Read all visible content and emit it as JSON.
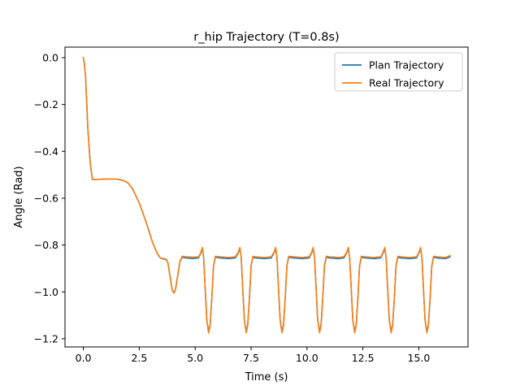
{
  "chart_data": {
    "type": "line",
    "title": "r_hip Trajectory (T=0.8s)",
    "xlabel": "Time (s)",
    "ylabel": "Angle (Rad)",
    "xlim": [
      -0.82,
      17.2
    ],
    "ylim": [
      -1.235,
      0.045
    ],
    "xticks": [
      0.0,
      2.5,
      5.0,
      7.5,
      10.0,
      12.5,
      15.0
    ],
    "xtick_labels": [
      "0.0",
      "2.5",
      "5.0",
      "7.5",
      "10.0",
      "12.5",
      "15.0"
    ],
    "yticks": [
      0.0,
      -0.2,
      -0.4,
      -0.6,
      -0.8,
      -1.0,
      -1.2
    ],
    "ytick_labels": [
      "0.0",
      "−0.2",
      "−0.4",
      "−0.6",
      "−0.8",
      "−1.0",
      "−1.2"
    ],
    "grid": false,
    "legend_position": "top-right",
    "series": [
      {
        "name": "Plan Trajectory",
        "color": "#1f77b4",
        "points": [
          [
            0.0,
            0.0
          ],
          [
            0.05,
            -0.03
          ],
          [
            0.1,
            -0.08
          ],
          [
            0.2,
            -0.3
          ],
          [
            0.3,
            -0.44
          ],
          [
            0.4,
            -0.52
          ],
          [
            0.6,
            -0.52
          ],
          [
            1.0,
            -0.518
          ],
          [
            1.5,
            -0.518
          ],
          [
            1.8,
            -0.525
          ],
          [
            2.0,
            -0.535
          ],
          [
            2.2,
            -0.56
          ],
          [
            2.5,
            -0.62
          ],
          [
            2.8,
            -0.7
          ],
          [
            3.1,
            -0.79
          ],
          [
            3.3,
            -0.835
          ],
          [
            3.45,
            -0.856
          ],
          [
            3.6,
            -0.86
          ],
          [
            3.7,
            -0.862
          ],
          [
            3.78,
            -0.875
          ],
          [
            3.88,
            -0.935
          ],
          [
            3.98,
            -0.995
          ],
          [
            4.05,
            -1.005
          ],
          [
            4.12,
            -0.99
          ],
          [
            4.22,
            -0.93
          ],
          [
            4.32,
            -0.87
          ],
          [
            4.42,
            -0.852
          ],
          [
            4.6,
            -0.855
          ],
          [
            4.9,
            -0.858
          ],
          [
            5.15,
            -0.855
          ],
          [
            5.25,
            -0.835
          ],
          [
            5.32,
            -0.815
          ],
          [
            5.38,
            -0.855
          ],
          [
            5.45,
            -0.99
          ],
          [
            5.52,
            -1.12
          ],
          [
            5.6,
            -1.17
          ],
          [
            5.67,
            -1.14
          ],
          [
            5.75,
            -1.02
          ],
          [
            5.82,
            -0.89
          ],
          [
            5.9,
            -0.852
          ],
          [
            6.1,
            -0.855
          ],
          [
            6.5,
            -0.858
          ],
          [
            6.8,
            -0.855
          ],
          [
            6.92,
            -0.835
          ],
          [
            7.0,
            -0.815
          ],
          [
            7.06,
            -0.855
          ],
          [
            7.13,
            -0.99
          ],
          [
            7.2,
            -1.12
          ],
          [
            7.28,
            -1.17
          ],
          [
            7.35,
            -1.14
          ],
          [
            7.43,
            -1.02
          ],
          [
            7.5,
            -0.89
          ],
          [
            7.58,
            -0.852
          ],
          [
            7.7,
            -0.855
          ],
          [
            8.1,
            -0.858
          ],
          [
            8.4,
            -0.855
          ],
          [
            8.52,
            -0.835
          ],
          [
            8.6,
            -0.815
          ],
          [
            8.66,
            -0.855
          ],
          [
            8.73,
            -0.99
          ],
          [
            8.8,
            -1.12
          ],
          [
            8.88,
            -1.17
          ],
          [
            8.95,
            -1.14
          ],
          [
            9.03,
            -1.02
          ],
          [
            9.1,
            -0.89
          ],
          [
            9.18,
            -0.852
          ],
          [
            9.4,
            -0.855
          ],
          [
            9.8,
            -0.858
          ],
          [
            10.1,
            -0.855
          ],
          [
            10.2,
            -0.835
          ],
          [
            10.28,
            -0.815
          ],
          [
            10.34,
            -0.855
          ],
          [
            10.41,
            -0.99
          ],
          [
            10.48,
            -1.12
          ],
          [
            10.56,
            -1.17
          ],
          [
            10.63,
            -1.14
          ],
          [
            10.71,
            -1.02
          ],
          [
            10.78,
            -0.89
          ],
          [
            10.86,
            -0.852
          ],
          [
            11.0,
            -0.855
          ],
          [
            11.4,
            -0.858
          ],
          [
            11.65,
            -0.855
          ],
          [
            11.77,
            -0.835
          ],
          [
            11.85,
            -0.815
          ],
          [
            11.91,
            -0.855
          ],
          [
            11.98,
            -0.99
          ],
          [
            12.05,
            -1.12
          ],
          [
            12.13,
            -1.17
          ],
          [
            12.2,
            -1.14
          ],
          [
            12.28,
            -1.02
          ],
          [
            12.35,
            -0.89
          ],
          [
            12.43,
            -0.852
          ],
          [
            12.6,
            -0.855
          ],
          [
            13.0,
            -0.858
          ],
          [
            13.3,
            -0.855
          ],
          [
            13.4,
            -0.835
          ],
          [
            13.48,
            -0.815
          ],
          [
            13.54,
            -0.855
          ],
          [
            13.61,
            -0.99
          ],
          [
            13.68,
            -1.12
          ],
          [
            13.76,
            -1.17
          ],
          [
            13.83,
            -1.14
          ],
          [
            13.91,
            -1.02
          ],
          [
            13.98,
            -0.89
          ],
          [
            14.06,
            -0.852
          ],
          [
            14.2,
            -0.855
          ],
          [
            14.6,
            -0.858
          ],
          [
            14.9,
            -0.855
          ],
          [
            15.0,
            -0.835
          ],
          [
            15.08,
            -0.815
          ],
          [
            15.14,
            -0.855
          ],
          [
            15.21,
            -0.99
          ],
          [
            15.28,
            -1.12
          ],
          [
            15.36,
            -1.17
          ],
          [
            15.43,
            -1.14
          ],
          [
            15.51,
            -1.02
          ],
          [
            15.58,
            -0.89
          ],
          [
            15.66,
            -0.852
          ],
          [
            15.8,
            -0.855
          ],
          [
            16.2,
            -0.858
          ],
          [
            16.4,
            -0.85
          ]
        ]
      },
      {
        "name": "Real Trajectory",
        "color": "#ff7f0e",
        "points": [
          [
            0.0,
            0.0
          ],
          [
            0.05,
            -0.03
          ],
          [
            0.1,
            -0.08
          ],
          [
            0.2,
            -0.3
          ],
          [
            0.3,
            -0.44
          ],
          [
            0.4,
            -0.52
          ],
          [
            0.6,
            -0.52
          ],
          [
            1.0,
            -0.518
          ],
          [
            1.5,
            -0.518
          ],
          [
            1.8,
            -0.525
          ],
          [
            2.0,
            -0.535
          ],
          [
            2.2,
            -0.56
          ],
          [
            2.5,
            -0.62
          ],
          [
            2.8,
            -0.7
          ],
          [
            3.1,
            -0.79
          ],
          [
            3.3,
            -0.835
          ],
          [
            3.45,
            -0.856
          ],
          [
            3.6,
            -0.858
          ],
          [
            3.7,
            -0.86
          ],
          [
            3.78,
            -0.875
          ],
          [
            3.88,
            -0.935
          ],
          [
            3.98,
            -0.995
          ],
          [
            4.05,
            -1.005
          ],
          [
            4.12,
            -0.99
          ],
          [
            4.22,
            -0.93
          ],
          [
            4.32,
            -0.87
          ],
          [
            4.42,
            -0.848
          ],
          [
            4.6,
            -0.85
          ],
          [
            4.9,
            -0.852
          ],
          [
            5.15,
            -0.85
          ],
          [
            5.25,
            -0.832
          ],
          [
            5.32,
            -0.81
          ],
          [
            5.38,
            -0.855
          ],
          [
            5.45,
            -0.99
          ],
          [
            5.52,
            -1.12
          ],
          [
            5.6,
            -1.175
          ],
          [
            5.67,
            -1.145
          ],
          [
            5.75,
            -1.02
          ],
          [
            5.82,
            -0.89
          ],
          [
            5.9,
            -0.848
          ],
          [
            6.1,
            -0.85
          ],
          [
            6.5,
            -0.853
          ],
          [
            6.8,
            -0.85
          ],
          [
            6.92,
            -0.832
          ],
          [
            7.0,
            -0.81
          ],
          [
            7.06,
            -0.855
          ],
          [
            7.13,
            -0.99
          ],
          [
            7.2,
            -1.12
          ],
          [
            7.28,
            -1.175
          ],
          [
            7.35,
            -1.145
          ],
          [
            7.43,
            -1.02
          ],
          [
            7.5,
            -0.89
          ],
          [
            7.58,
            -0.848
          ],
          [
            7.7,
            -0.85
          ],
          [
            8.1,
            -0.853
          ],
          [
            8.4,
            -0.85
          ],
          [
            8.52,
            -0.832
          ],
          [
            8.6,
            -0.81
          ],
          [
            8.66,
            -0.855
          ],
          [
            8.73,
            -0.99
          ],
          [
            8.8,
            -1.12
          ],
          [
            8.88,
            -1.175
          ],
          [
            8.95,
            -1.145
          ],
          [
            9.03,
            -1.02
          ],
          [
            9.1,
            -0.89
          ],
          [
            9.18,
            -0.848
          ],
          [
            9.4,
            -0.85
          ],
          [
            9.8,
            -0.853
          ],
          [
            10.1,
            -0.85
          ],
          [
            10.2,
            -0.832
          ],
          [
            10.28,
            -0.81
          ],
          [
            10.34,
            -0.855
          ],
          [
            10.41,
            -0.99
          ],
          [
            10.48,
            -1.12
          ],
          [
            10.56,
            -1.175
          ],
          [
            10.63,
            -1.145
          ],
          [
            10.71,
            -1.02
          ],
          [
            10.78,
            -0.89
          ],
          [
            10.86,
            -0.848
          ],
          [
            11.0,
            -0.85
          ],
          [
            11.4,
            -0.853
          ],
          [
            11.65,
            -0.85
          ],
          [
            11.77,
            -0.832
          ],
          [
            11.85,
            -0.81
          ],
          [
            11.91,
            -0.855
          ],
          [
            11.98,
            -0.99
          ],
          [
            12.05,
            -1.12
          ],
          [
            12.13,
            -1.175
          ],
          [
            12.2,
            -1.145
          ],
          [
            12.28,
            -1.02
          ],
          [
            12.35,
            -0.89
          ],
          [
            12.43,
            -0.848
          ],
          [
            12.6,
            -0.85
          ],
          [
            13.0,
            -0.853
          ],
          [
            13.3,
            -0.85
          ],
          [
            13.4,
            -0.832
          ],
          [
            13.48,
            -0.81
          ],
          [
            13.54,
            -0.855
          ],
          [
            13.61,
            -0.99
          ],
          [
            13.68,
            -1.12
          ],
          [
            13.76,
            -1.175
          ],
          [
            13.83,
            -1.145
          ],
          [
            13.91,
            -1.02
          ],
          [
            13.98,
            -0.89
          ],
          [
            14.06,
            -0.848
          ],
          [
            14.2,
            -0.85
          ],
          [
            14.6,
            -0.853
          ],
          [
            14.9,
            -0.85
          ],
          [
            15.0,
            -0.832
          ],
          [
            15.08,
            -0.81
          ],
          [
            15.14,
            -0.855
          ],
          [
            15.21,
            -0.99
          ],
          [
            15.28,
            -1.12
          ],
          [
            15.36,
            -1.175
          ],
          [
            15.43,
            -1.145
          ],
          [
            15.51,
            -1.02
          ],
          [
            15.58,
            -0.89
          ],
          [
            15.66,
            -0.848
          ],
          [
            15.8,
            -0.85
          ],
          [
            16.2,
            -0.853
          ],
          [
            16.4,
            -0.845
          ]
        ]
      }
    ]
  }
}
